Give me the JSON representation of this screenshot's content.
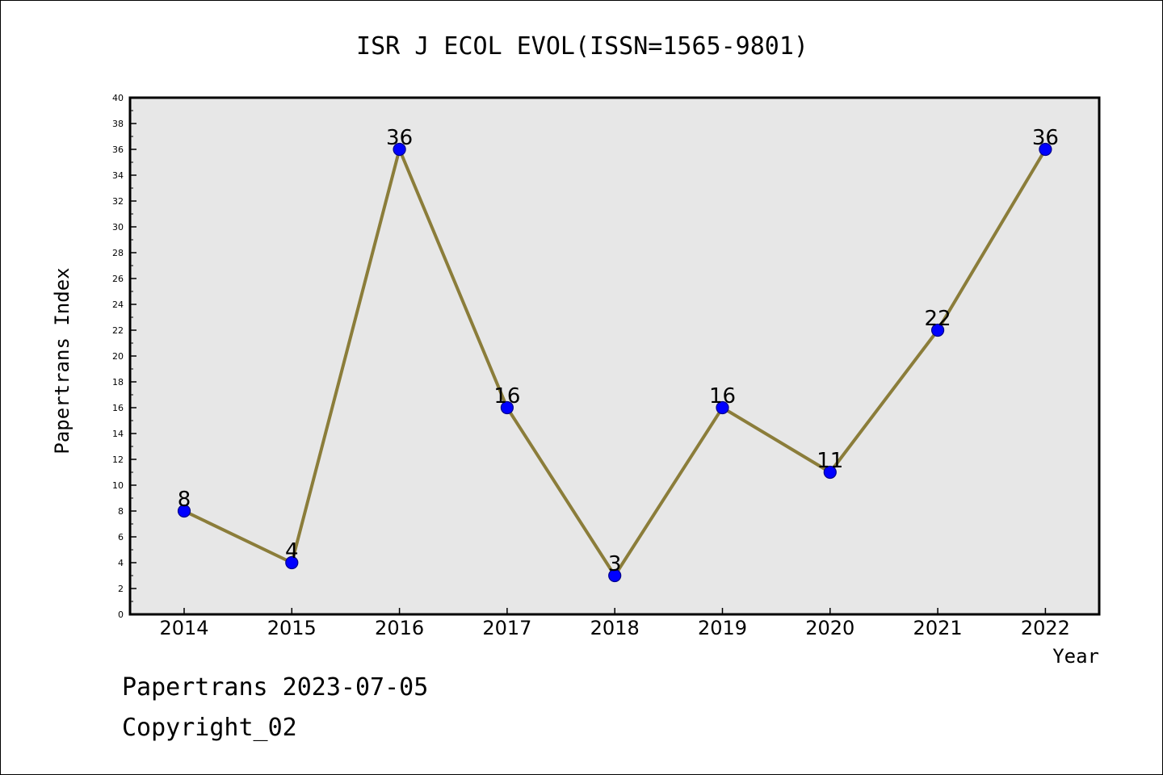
{
  "footer": {
    "line1": "Papertrans 2023-07-05",
    "line2": "Copyright_02"
  },
  "chart_data": {
    "type": "line",
    "title": "ISR J ECOL EVOL(ISSN=1565-9801)",
    "xlabel": "Year",
    "ylabel": "Papertrans Index",
    "categories": [
      "2014",
      "2015",
      "2016",
      "2017",
      "2018",
      "2019",
      "2020",
      "2021",
      "2022"
    ],
    "series": [
      {
        "values": [
          8,
          4,
          36,
          16,
          3,
          16,
          11,
          22,
          36
        ]
      }
    ],
    "ylim": [
      0,
      40
    ],
    "ytick_step": 2,
    "grid": false,
    "legend": "none",
    "colors": {
      "line": "#8B7D3A",
      "marker_fill": "#0000FF",
      "marker_edge": "#00008B",
      "plot_bg": "#E7E7E7"
    }
  }
}
